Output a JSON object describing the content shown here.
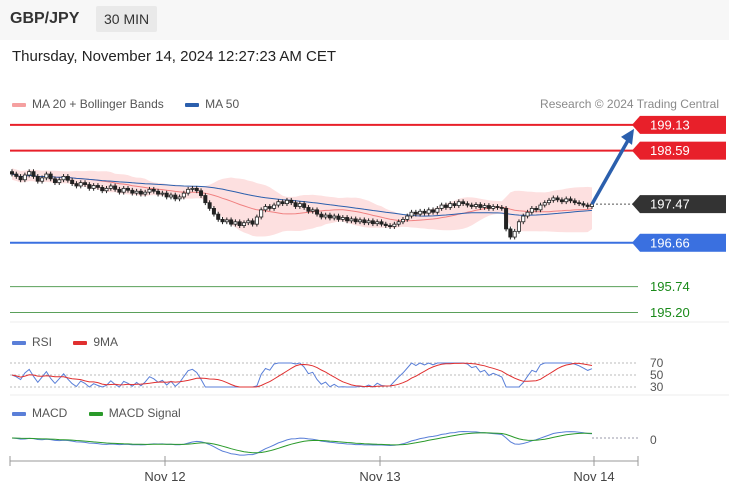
{
  "header": {
    "symbol": "GBP/JPY",
    "timeframe": "30 MIN"
  },
  "datetime": "Thursday, November 14, 2024 12:27:23 AM CET",
  "legend_main": [
    {
      "label": "MA 20 + Bollinger Bands",
      "color": "#f08080"
    },
    {
      "label": "MA 50",
      "color": "#2b5fad"
    }
  ],
  "credit": "Research © 2024 Trading Central",
  "legend_rsi": [
    {
      "label": "RSI",
      "color": "#5a7fd8"
    },
    {
      "label": "9MA",
      "color": "#e03030"
    }
  ],
  "legend_macd": [
    {
      "label": "MACD",
      "color": "#5a7fd8"
    },
    {
      "label": "MACD Signal",
      "color": "#2a9a2a"
    }
  ],
  "chart_data": {
    "type": "candlestick",
    "x_ticks": [
      "Nov 12",
      "Nov 13",
      "Nov 14"
    ],
    "ylim": [
      195.0,
      199.4
    ],
    "levels": [
      {
        "value": 199.13,
        "label": "199.13",
        "color": "#e8202a",
        "style": "line"
      },
      {
        "value": 198.59,
        "label": "198.59",
        "color": "#e8202a",
        "style": "line"
      },
      {
        "value": 197.47,
        "label": "197.47",
        "color": "#333333",
        "style": "dotted"
      },
      {
        "value": 196.66,
        "label": "196.66",
        "color": "#3a70e0",
        "style": "line"
      },
      {
        "value": 195.74,
        "label": "195.74",
        "color": "#5aa05a",
        "style": "thin"
      },
      {
        "value": 195.2,
        "label": "195.20",
        "color": "#5aa05a",
        "style": "thin"
      }
    ],
    "closes": [
      198.1,
      198.05,
      197.98,
      198.08,
      198.15,
      198.05,
      197.95,
      198.02,
      198.1,
      198.0,
      197.92,
      197.98,
      198.05,
      197.97,
      197.9,
      197.85,
      197.92,
      197.88,
      197.8,
      197.86,
      197.82,
      197.75,
      197.8,
      197.85,
      197.78,
      197.72,
      197.8,
      197.76,
      197.7,
      197.74,
      197.68,
      197.72,
      197.78,
      197.74,
      197.68,
      197.7,
      197.62,
      197.66,
      197.58,
      197.62,
      197.7,
      197.78,
      197.8,
      197.75,
      197.65,
      197.5,
      197.38,
      197.26,
      197.15,
      197.1,
      197.14,
      197.05,
      197.1,
      197.02,
      197.08,
      197.12,
      197.05,
      197.2,
      197.35,
      197.42,
      197.38,
      197.45,
      197.52,
      197.48,
      197.55,
      197.5,
      197.42,
      197.48,
      197.4,
      197.32,
      197.35,
      197.26,
      197.2,
      197.24,
      197.18,
      197.22,
      197.15,
      197.19,
      197.12,
      197.16,
      197.1,
      197.14,
      197.08,
      197.12,
      197.06,
      197.1,
      197.05,
      197.02,
      197.0,
      197.05,
      197.1,
      197.15,
      197.22,
      197.3,
      197.26,
      197.32,
      197.28,
      197.35,
      197.3,
      197.38,
      197.45,
      197.4,
      197.48,
      197.44,
      197.52,
      197.48,
      197.45,
      197.42,
      197.46,
      197.4,
      197.44,
      197.38,
      197.42,
      197.4,
      197.38,
      196.95,
      196.78,
      196.9,
      197.1,
      197.22,
      197.3,
      197.38,
      197.35,
      197.45,
      197.5,
      197.55,
      197.6,
      197.56,
      197.52,
      197.58,
      197.54,
      197.5,
      197.48,
      197.45,
      197.42,
      197.47
    ],
    "rsi": {
      "levels": [
        70,
        50,
        30
      ],
      "ylim": [
        25,
        75
      ]
    },
    "macd": {
      "zero_label": "0"
    }
  }
}
